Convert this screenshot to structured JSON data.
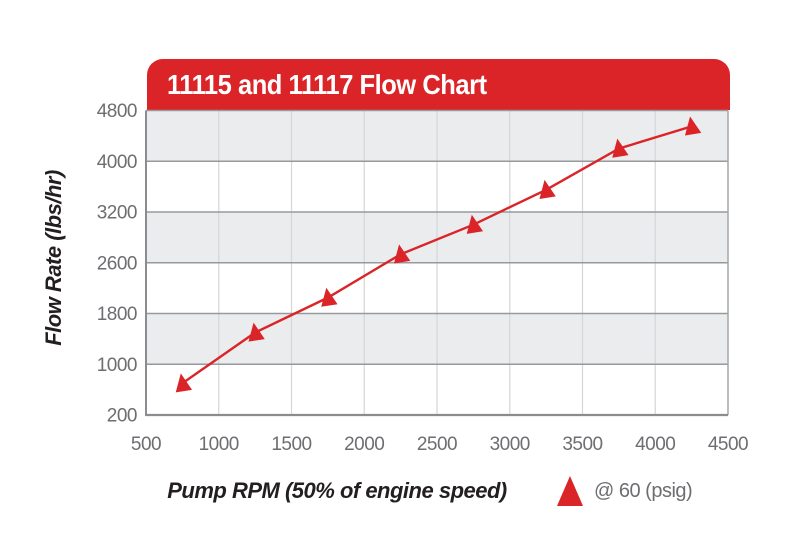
{
  "header": {
    "title": "11115 and 11117 Flow Chart",
    "banner_color": "#DA2428",
    "title_color": "#FFFFFF"
  },
  "chart_data": {
    "type": "line",
    "title": "11115 and 11117 Flow Chart",
    "xlabel": "Pump RPM (50% of engine speed)",
    "ylabel": "Flow Rate (lbs/hr)",
    "x_ticks": [
      500,
      1000,
      1500,
      2000,
      2500,
      3000,
      3500,
      4000,
      4500
    ],
    "y_ticks": [
      200,
      1000,
      1800,
      2600,
      3200,
      4000,
      4800
    ],
    "xlim": [
      500,
      4500
    ],
    "grid": true,
    "legend_position": "bottom-right",
    "series": [
      {
        "name": "@ 60 (psig)",
        "marker": "triangle-up",
        "color": "#DA2428",
        "x": [
          750,
          1250,
          1750,
          2250,
          2750,
          3250,
          3750,
          4250
        ],
        "y": [
          700,
          1500,
          2050,
          2700,
          3050,
          3550,
          4200,
          4550
        ]
      }
    ],
    "style": {
      "band_fill": "#EBECEE",
      "white_band_fill": "#FFFFFF",
      "h_grid_color": "#97999C",
      "v_grid_color": "#D5D6D8",
      "axis_color": "#8A8C8F",
      "right_edge_color": "#A4A6A9",
      "tick_color": "#6D6E71"
    }
  },
  "legend": {
    "label": "@ 60 (psig)",
    "marker_color": "#DA2428"
  }
}
